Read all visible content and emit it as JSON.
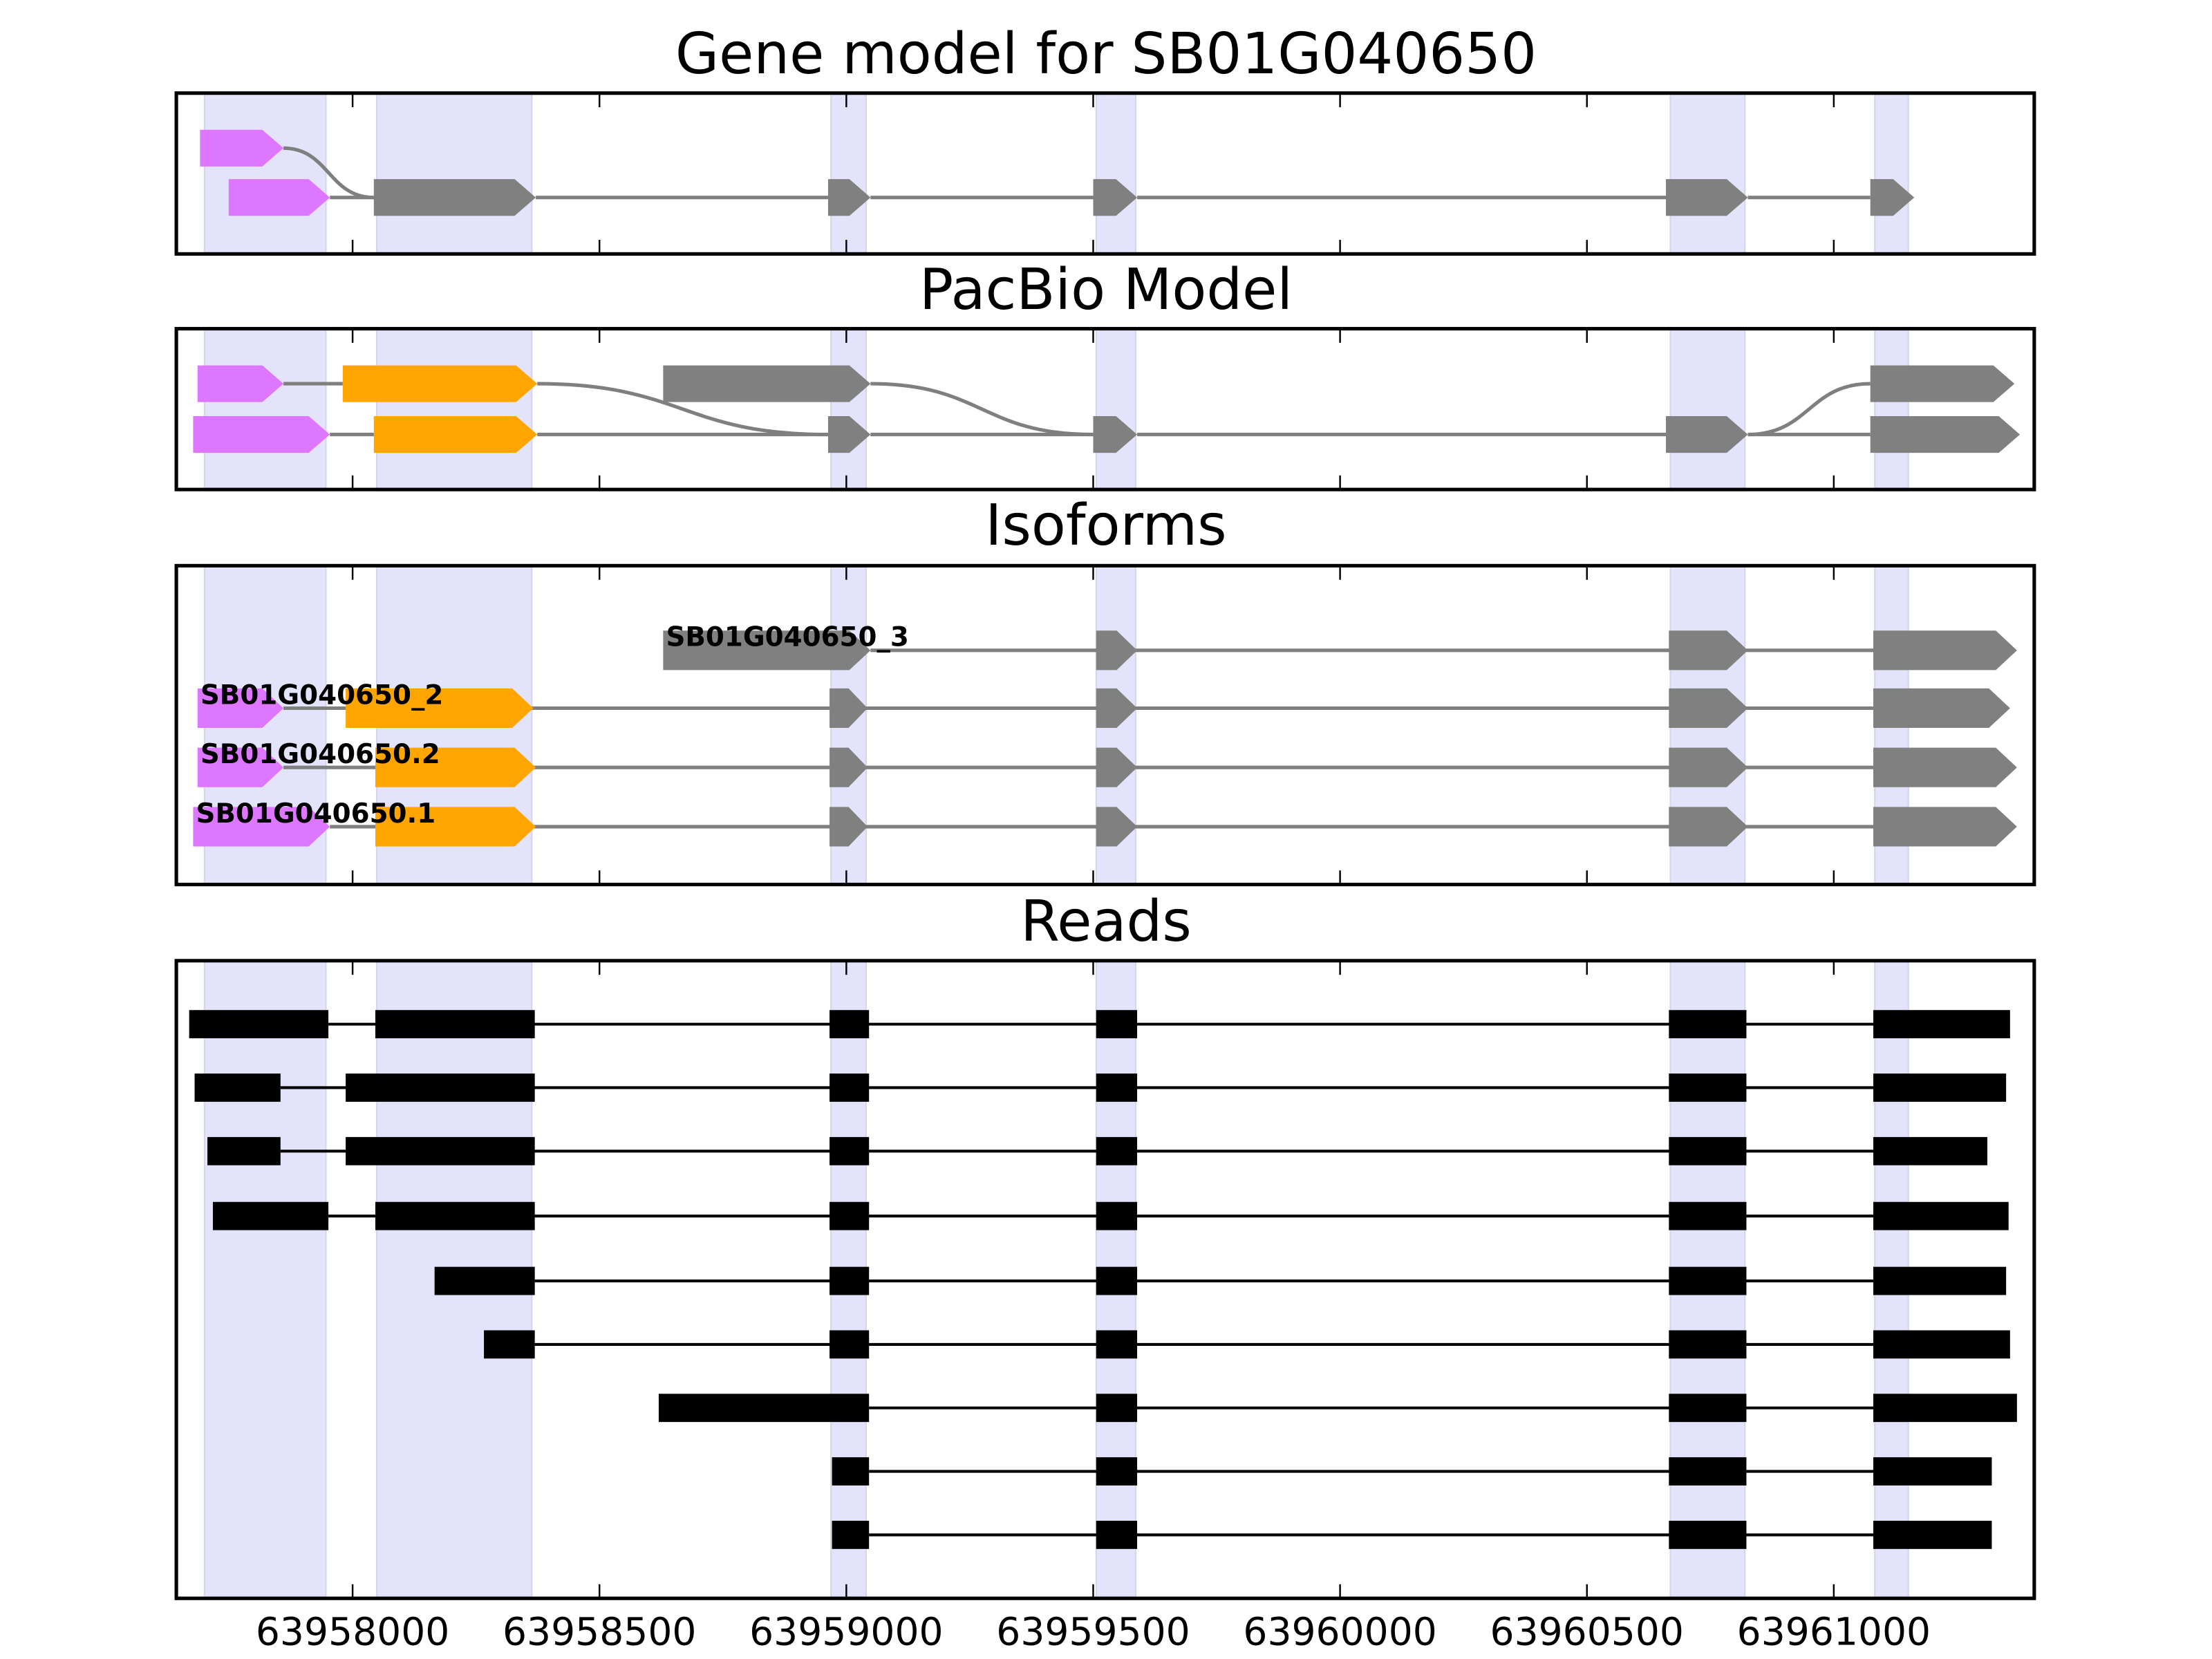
{
  "chart_data": {
    "type": "gene-structure",
    "xlim": [
      63957643,
      63961406
    ],
    "xticks": [
      63958000,
      63958500,
      63959000,
      63959500,
      63960000,
      63960500,
      63961000
    ],
    "xtick_labels": [
      "63958000",
      "63958500",
      "63959000",
      "63959500",
      "63960000",
      "63960500",
      "63961000"
    ],
    "colors": {
      "utr5": "#dd77ff",
      "cds_alt": "#ffa500",
      "exon": "#808080",
      "read": "#000000",
      "shade": "#e3e3fb",
      "intron": "#7f7f7f"
    },
    "shaded_exon_regions": [
      [
        63957700,
        63957946
      ],
      [
        63958049,
        63958363
      ],
      [
        63958969,
        63959040
      ],
      [
        63959506,
        63959586
      ],
      [
        63960669,
        63960820
      ],
      [
        63961083,
        63961151
      ]
    ],
    "panels": [
      {
        "title": "Gene model for SB01G040650",
        "rows": [
          {
            "exons": [
              [
                63957691,
                63957860,
                "utr5"
              ]
            ]
          },
          {
            "exons": [
              [
                63957749,
                63957954,
                "utr5"
              ],
              [
                63958043,
                63958371,
                "exon"
              ],
              [
                63958963,
                63959049,
                "exon"
              ],
              [
                63959500,
                63959589,
                "exon"
              ],
              [
                63960660,
                63960826,
                "exon"
              ],
              [
                63961074,
                63961163,
                "exon"
              ]
            ]
          }
        ],
        "links": [
          [
            0,
            63957860,
            1,
            63958043
          ],
          [
            1,
            63957954,
            1,
            63958043
          ],
          [
            1,
            63958371,
            1,
            63958963
          ],
          [
            1,
            63959049,
            1,
            63959500
          ],
          [
            1,
            63959589,
            1,
            63960660
          ],
          [
            1,
            63960826,
            1,
            63961074
          ]
        ]
      },
      {
        "title": "PacBio Model",
        "rows": [
          {
            "exons": [
              [
                63957686,
                63957860,
                "utr5"
              ],
              [
                63957980,
                63958374,
                "cds_alt"
              ],
              [
                63958629,
                63959049,
                "exon"
              ],
              [
                63961074,
                63961366,
                "exon"
              ]
            ]
          },
          {
            "exons": [
              [
                63957677,
                63957954,
                "utr5"
              ],
              [
                63958043,
                63958374,
                "cds_alt"
              ],
              [
                63958963,
                63959049,
                "exon"
              ],
              [
                63959500,
                63959589,
                "exon"
              ],
              [
                63960660,
                63960826,
                "exon"
              ],
              [
                63961074,
                63961377,
                "exon"
              ]
            ]
          }
        ],
        "links": [
          [
            0,
            63957860,
            0,
            63957980
          ],
          [
            0,
            63958374,
            1,
            63958963
          ],
          [
            0,
            63959049,
            1,
            63959500
          ],
          [
            1,
            63960826,
            0,
            63961074
          ],
          [
            1,
            63957954,
            1,
            63958043
          ],
          [
            1,
            63958374,
            1,
            63958963
          ],
          [
            1,
            63959049,
            1,
            63959500
          ],
          [
            1,
            63959589,
            1,
            63960660
          ],
          [
            1,
            63960826,
            1,
            63961074
          ]
        ]
      },
      {
        "title": "Isoforms",
        "rows": [
          {
            "label": "SB01G040650_3",
            "exons": [
              [
                63958629,
                63959049,
                "exon"
              ],
              [
                63959506,
                63959589,
                "exon"
              ],
              [
                63960666,
                63960826,
                "exon"
              ],
              [
                63961080,
                63961371,
                "exon"
              ]
            ]
          },
          {
            "label": "SB01G040650_2",
            "exons": [
              [
                63957686,
                63957860,
                "utr5"
              ],
              [
                63957986,
                63958366,
                "cds_alt"
              ],
              [
                63958966,
                63959043,
                "exon"
              ],
              [
                63959506,
                63959589,
                "exon"
              ],
              [
                63960666,
                63960826,
                "exon"
              ],
              [
                63961080,
                63961357,
                "exon"
              ]
            ]
          },
          {
            "label": "SB01G040650.2",
            "exons": [
              [
                63957686,
                63957860,
                "utr5"
              ],
              [
                63958046,
                63958371,
                "cds_alt"
              ],
              [
                63958966,
                63959043,
                "exon"
              ],
              [
                63959506,
                63959589,
                "exon"
              ],
              [
                63960666,
                63960826,
                "exon"
              ],
              [
                63961080,
                63961371,
                "exon"
              ]
            ]
          },
          {
            "label": "SB01G040650.1",
            "exons": [
              [
                63957677,
                63957954,
                "utr5"
              ],
              [
                63958046,
                63958371,
                "cds_alt"
              ],
              [
                63958966,
                63959043,
                "exon"
              ],
              [
                63959506,
                63959589,
                "exon"
              ],
              [
                63960666,
                63960826,
                "exon"
              ],
              [
                63961080,
                63961371,
                "exon"
              ]
            ]
          }
        ]
      },
      {
        "title": "Reads",
        "rows": [
          {
            "exons": [
              [
                63957669,
                63957951
              ],
              [
                63958046,
                63958369
              ],
              [
                63958966,
                63959046
              ],
              [
                63959506,
                63959589
              ],
              [
                63960666,
                63960823
              ],
              [
                63961080,
                63961357
              ]
            ]
          },
          {
            "exons": [
              [
                63957680,
                63957854
              ],
              [
                63957986,
                63958369
              ],
              [
                63958966,
                63959046
              ],
              [
                63959506,
                63959589
              ],
              [
                63960666,
                63960823
              ],
              [
                63961080,
                63961349
              ]
            ]
          },
          {
            "exons": [
              [
                63957706,
                63957854
              ],
              [
                63957986,
                63958369
              ],
              [
                63958966,
                63959046
              ],
              [
                63959506,
                63959589
              ],
              [
                63960666,
                63960823
              ],
              [
                63961080,
                63961311
              ]
            ]
          },
          {
            "exons": [
              [
                63957717,
                63957951
              ],
              [
                63958046,
                63958369
              ],
              [
                63958966,
                63959046
              ],
              [
                63959506,
                63959589
              ],
              [
                63960666,
                63960823
              ],
              [
                63961080,
                63961354
              ]
            ]
          },
          {
            "exons": [
              [
                63958166,
                63958369
              ],
              [
                63958966,
                63959046
              ],
              [
                63959506,
                63959589
              ],
              [
                63960666,
                63960823
              ],
              [
                63961080,
                63961349
              ]
            ]
          },
          {
            "exons": [
              [
                63958266,
                63958369
              ],
              [
                63958966,
                63959046
              ],
              [
                63959506,
                63959589
              ],
              [
                63960666,
                63960823
              ],
              [
                63961080,
                63961357
              ]
            ]
          },
          {
            "exons": [
              [
                63958620,
                63959046
              ],
              [
                63959506,
                63959589
              ],
              [
                63960666,
                63960823
              ],
              [
                63961080,
                63961371
              ]
            ]
          },
          {
            "exons": [
              [
                63958971,
                63959046
              ],
              [
                63959506,
                63959589
              ],
              [
                63960666,
                63960823
              ],
              [
                63961080,
                63961320
              ]
            ]
          },
          {
            "exons": [
              [
                63958971,
                63959046
              ],
              [
                63959506,
                63959589
              ],
              [
                63960666,
                63960823
              ],
              [
                63961080,
                63961320
              ]
            ]
          }
        ]
      }
    ]
  }
}
